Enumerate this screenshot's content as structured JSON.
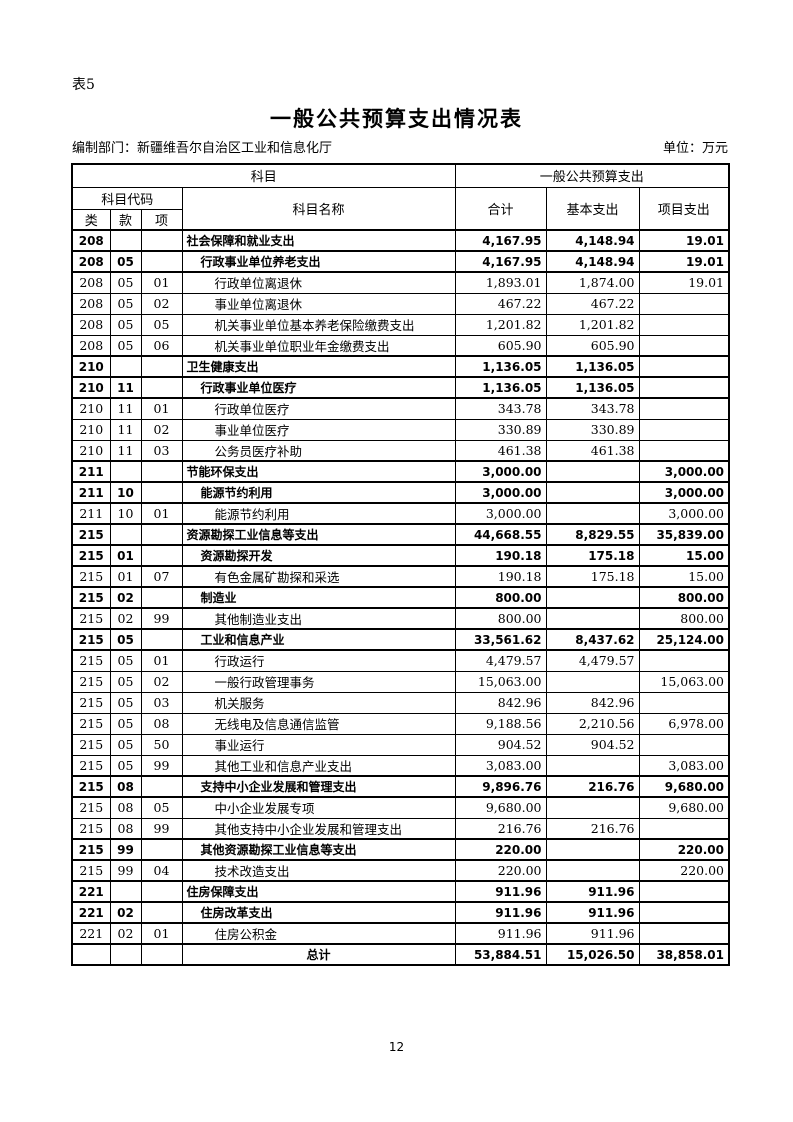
{
  "page": {
    "table_label": "表5",
    "title": "一般公共预算支出情况表",
    "prepared_by": "编制部门：新疆维吾尔自治区工业和信息化厅",
    "unit": "单位：万元",
    "page_number": "12"
  },
  "table": {
    "header": {
      "subject_group": "科目",
      "budget_group": "一般公共预算支出",
      "code_group": "科目代码",
      "name": "科目名称",
      "code_cols": [
        "类",
        "款",
        "项"
      ],
      "total": "合计",
      "basic": "基本支出",
      "project": "项目支出"
    },
    "rows": [
      {
        "lei": "208",
        "kuan": "",
        "xiang": "",
        "name": "社会保障和就业支出",
        "total": "4,167.95",
        "basic": "4,148.94",
        "project": "19.01",
        "level": 1
      },
      {
        "lei": "208",
        "kuan": "05",
        "xiang": "",
        "name": "行政事业单位养老支出",
        "total": "4,167.95",
        "basic": "4,148.94",
        "project": "19.01",
        "level": 2
      },
      {
        "lei": "208",
        "kuan": "05",
        "xiang": "01",
        "name": "行政单位离退休",
        "total": "1,893.01",
        "basic": "1,874.00",
        "project": "19.01",
        "level": 3
      },
      {
        "lei": "208",
        "kuan": "05",
        "xiang": "02",
        "name": "事业单位离退休",
        "total": "467.22",
        "basic": "467.22",
        "project": "",
        "level": 3
      },
      {
        "lei": "208",
        "kuan": "05",
        "xiang": "05",
        "name": "机关事业单位基本养老保险缴费支出",
        "total": "1,201.82",
        "basic": "1,201.82",
        "project": "",
        "level": 3
      },
      {
        "lei": "208",
        "kuan": "05",
        "xiang": "06",
        "name": "机关事业单位职业年金缴费支出",
        "total": "605.90",
        "basic": "605.90",
        "project": "",
        "level": 3
      },
      {
        "lei": "210",
        "kuan": "",
        "xiang": "",
        "name": "卫生健康支出",
        "total": "1,136.05",
        "basic": "1,136.05",
        "project": "",
        "level": 1
      },
      {
        "lei": "210",
        "kuan": "11",
        "xiang": "",
        "name": "行政事业单位医疗",
        "total": "1,136.05",
        "basic": "1,136.05",
        "project": "",
        "level": 2
      },
      {
        "lei": "210",
        "kuan": "11",
        "xiang": "01",
        "name": "行政单位医疗",
        "total": "343.78",
        "basic": "343.78",
        "project": "",
        "level": 3
      },
      {
        "lei": "210",
        "kuan": "11",
        "xiang": "02",
        "name": "事业单位医疗",
        "total": "330.89",
        "basic": "330.89",
        "project": "",
        "level": 3
      },
      {
        "lei": "210",
        "kuan": "11",
        "xiang": "03",
        "name": "公务员医疗补助",
        "total": "461.38",
        "basic": "461.38",
        "project": "",
        "level": 3
      },
      {
        "lei": "211",
        "kuan": "",
        "xiang": "",
        "name": "节能环保支出",
        "total": "3,000.00",
        "basic": "",
        "project": "3,000.00",
        "level": 1
      },
      {
        "lei": "211",
        "kuan": "10",
        "xiang": "",
        "name": "能源节约利用",
        "total": "3,000.00",
        "basic": "",
        "project": "3,000.00",
        "level": 2
      },
      {
        "lei": "211",
        "kuan": "10",
        "xiang": "01",
        "name": "能源节约利用",
        "total": "3,000.00",
        "basic": "",
        "project": "3,000.00",
        "level": 3
      },
      {
        "lei": "215",
        "kuan": "",
        "xiang": "",
        "name": "资源勘探工业信息等支出",
        "total": "44,668.55",
        "basic": "8,829.55",
        "project": "35,839.00",
        "level": 1
      },
      {
        "lei": "215",
        "kuan": "01",
        "xiang": "",
        "name": "资源勘探开发",
        "total": "190.18",
        "basic": "175.18",
        "project": "15.00",
        "level": 2
      },
      {
        "lei": "215",
        "kuan": "01",
        "xiang": "07",
        "name": "有色金属矿勘探和采选",
        "total": "190.18",
        "basic": "175.18",
        "project": "15.00",
        "level": 3
      },
      {
        "lei": "215",
        "kuan": "02",
        "xiang": "",
        "name": "制造业",
        "total": "800.00",
        "basic": "",
        "project": "800.00",
        "level": 2
      },
      {
        "lei": "215",
        "kuan": "02",
        "xiang": "99",
        "name": "其他制造业支出",
        "total": "800.00",
        "basic": "",
        "project": "800.00",
        "level": 3
      },
      {
        "lei": "215",
        "kuan": "05",
        "xiang": "",
        "name": "工业和信息产业",
        "total": "33,561.62",
        "basic": "8,437.62",
        "project": "25,124.00",
        "level": 2
      },
      {
        "lei": "215",
        "kuan": "05",
        "xiang": "01",
        "name": "行政运行",
        "total": "4,479.57",
        "basic": "4,479.57",
        "project": "",
        "level": 3
      },
      {
        "lei": "215",
        "kuan": "05",
        "xiang": "02",
        "name": "一般行政管理事务",
        "total": "15,063.00",
        "basic": "",
        "project": "15,063.00",
        "level": 3
      },
      {
        "lei": "215",
        "kuan": "05",
        "xiang": "03",
        "name": "机关服务",
        "total": "842.96",
        "basic": "842.96",
        "project": "",
        "level": 3
      },
      {
        "lei": "215",
        "kuan": "05",
        "xiang": "08",
        "name": "无线电及信息通信监管",
        "total": "9,188.56",
        "basic": "2,210.56",
        "project": "6,978.00",
        "level": 3
      },
      {
        "lei": "215",
        "kuan": "05",
        "xiang": "50",
        "name": "事业运行",
        "total": "904.52",
        "basic": "904.52",
        "project": "",
        "level": 3
      },
      {
        "lei": "215",
        "kuan": "05",
        "xiang": "99",
        "name": "其他工业和信息产业支出",
        "total": "3,083.00",
        "basic": "",
        "project": "3,083.00",
        "level": 3
      },
      {
        "lei": "215",
        "kuan": "08",
        "xiang": "",
        "name": "支持中小企业发展和管理支出",
        "total": "9,896.76",
        "basic": "216.76",
        "project": "9,680.00",
        "level": 2
      },
      {
        "lei": "215",
        "kuan": "08",
        "xiang": "05",
        "name": "中小企业发展专项",
        "total": "9,680.00",
        "basic": "",
        "project": "9,680.00",
        "level": 3
      },
      {
        "lei": "215",
        "kuan": "08",
        "xiang": "99",
        "name": "其他支持中小企业发展和管理支出",
        "total": "216.76",
        "basic": "216.76",
        "project": "",
        "level": 3
      },
      {
        "lei": "215",
        "kuan": "99",
        "xiang": "",
        "name": "其他资源勘探工业信息等支出",
        "total": "220.00",
        "basic": "",
        "project": "220.00",
        "level": 2
      },
      {
        "lei": "215",
        "kuan": "99",
        "xiang": "04",
        "name": "技术改造支出",
        "total": "220.00",
        "basic": "",
        "project": "220.00",
        "level": 3
      },
      {
        "lei": "221",
        "kuan": "",
        "xiang": "",
        "name": "住房保障支出",
        "total": "911.96",
        "basic": "911.96",
        "project": "",
        "level": 1
      },
      {
        "lei": "221",
        "kuan": "02",
        "xiang": "",
        "name": "住房改革支出",
        "total": "911.96",
        "basic": "911.96",
        "project": "",
        "level": 2
      },
      {
        "lei": "221",
        "kuan": "02",
        "xiang": "01",
        "name": "住房公积金",
        "total": "911.96",
        "basic": "911.96",
        "project": "",
        "level": 3
      },
      {
        "lei": "",
        "kuan": "",
        "xiang": "",
        "name": "总计",
        "total": "53,884.51",
        "basic": "15,026.50",
        "project": "38,858.01",
        "level": 0
      }
    ]
  }
}
